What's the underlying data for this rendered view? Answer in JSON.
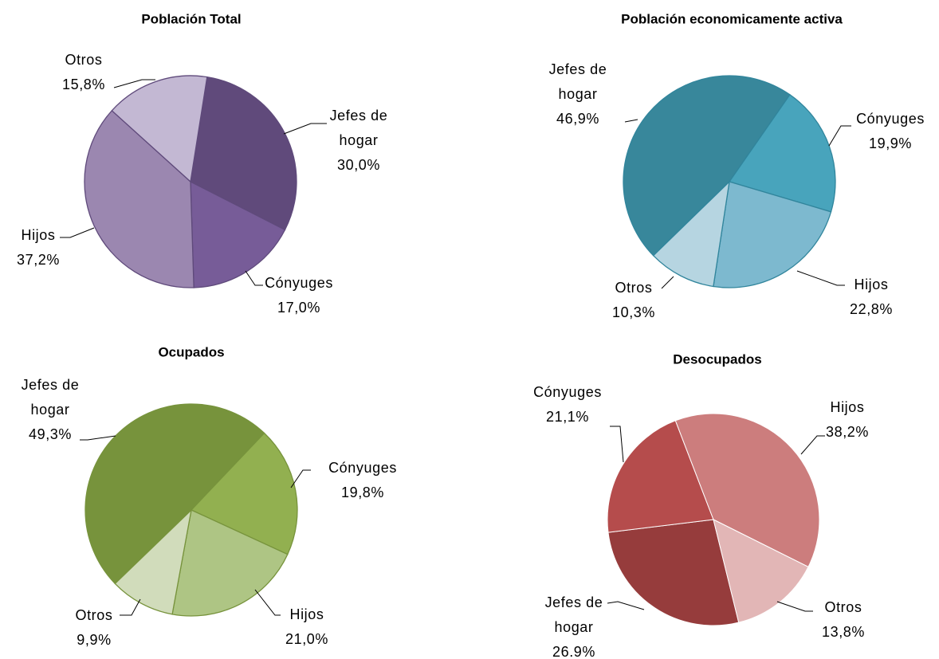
{
  "chart_data": [
    {
      "type": "pie",
      "title": "Población Total",
      "categories": [
        "Jefes de hogar",
        "Cónyuges",
        "Hijos",
        "Otros"
      ],
      "values": [
        30.0,
        17.0,
        37.2,
        15.8
      ],
      "value_labels": [
        "30,0%",
        "17,0%",
        "37,2%",
        "15,8%"
      ],
      "colors": [
        "#604a7b",
        "#775c98",
        "#9b87b0",
        "#c3b8d3"
      ],
      "edge_color": "#5f4a7b"
    },
    {
      "type": "pie",
      "title": "Población economicamente activa",
      "categories": [
        "Jefes de hogar",
        "Cónyuges",
        "Hijos",
        "Otros"
      ],
      "values": [
        46.9,
        19.9,
        22.8,
        10.3
      ],
      "value_labels": [
        "46,9%",
        "19,9%",
        "22,8%",
        "10,3%"
      ],
      "colors": [
        "#38879b",
        "#48a4bc",
        "#7db9cf",
        "#b6d5e1"
      ],
      "edge_color": "#31859c"
    },
    {
      "type": "pie",
      "title": "Ocupados",
      "categories": [
        "Jefes de hogar",
        "Cónyuges",
        "Hijos",
        "Otros"
      ],
      "values": [
        49.3,
        19.8,
        21.0,
        9.9
      ],
      "value_labels": [
        "49,3%",
        "19,8%",
        "21,0%",
        "9,9%"
      ],
      "colors": [
        "#77933c",
        "#92b050",
        "#aec584",
        "#d1dcbb"
      ],
      "edge_color": "#77933c"
    },
    {
      "type": "pie",
      "title": "Desocupados",
      "categories": [
        "Jefes de hogar",
        "Cónyuges",
        "Hijos",
        "Otros"
      ],
      "values": [
        26.9,
        21.1,
        38.2,
        13.8
      ],
      "value_labels": [
        "26.9%",
        "21,1%",
        "38,2%",
        "13,8%"
      ],
      "colors": [
        "#963c3c",
        "#b54c4c",
        "#cc7d7d",
        "#e2b6b6"
      ],
      "edge_color": "#ffffff"
    }
  ]
}
